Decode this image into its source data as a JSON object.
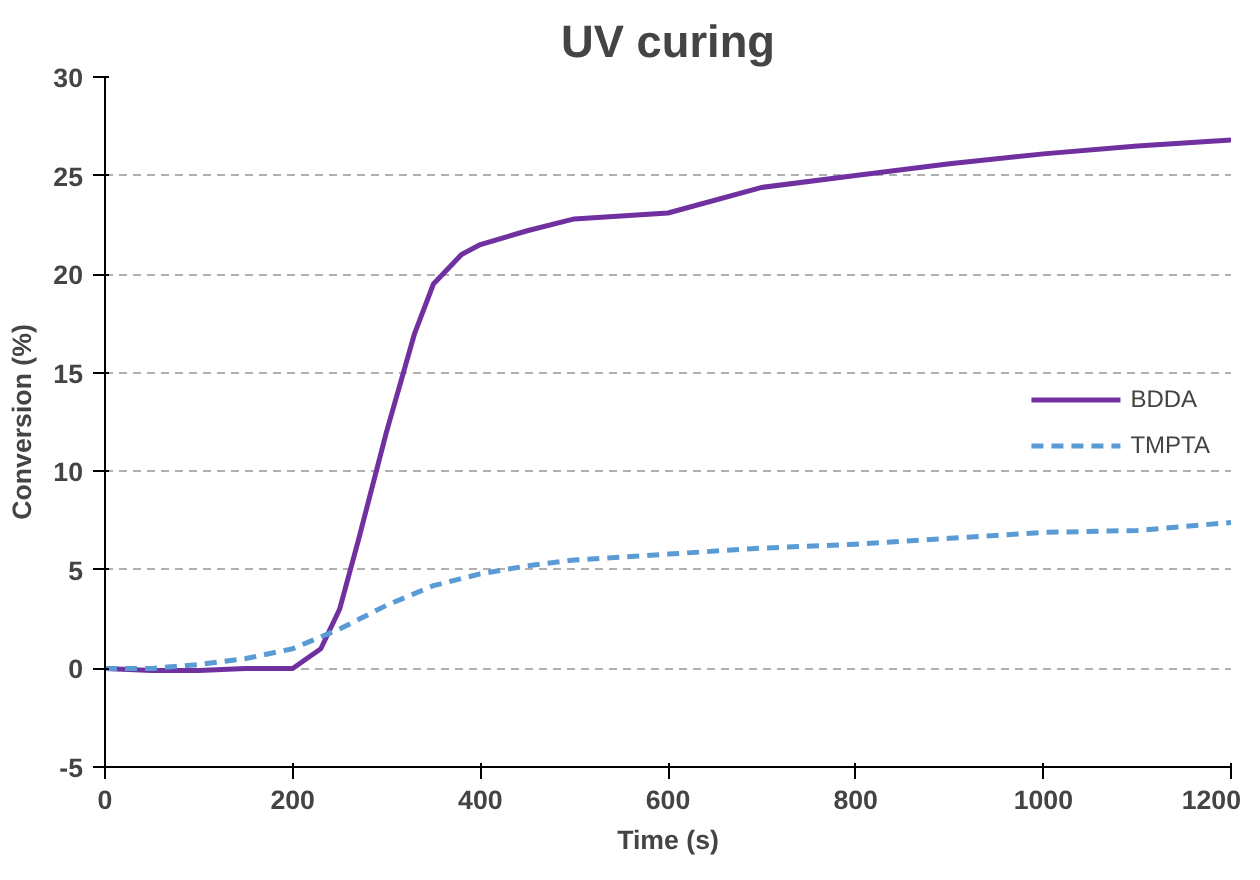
{
  "chart_data": {
    "type": "line",
    "title": "UV curing",
    "xlabel": "Time (s)",
    "ylabel": "Conversion (%)",
    "xlim": [
      0,
      1200
    ],
    "xticks": [
      0,
      200,
      400,
      600,
      800,
      1000,
      1200
    ],
    "ylim": [
      -5,
      30
    ],
    "yticks": [
      -5,
      0,
      5,
      10,
      15,
      20,
      25,
      30
    ],
    "grid": "y",
    "legend": "right",
    "series": [
      {
        "name": "BDDA",
        "color": "#7030a0",
        "line_style": "solid",
        "x": [
          0,
          50,
          100,
          150,
          200,
          230,
          250,
          270,
          300,
          330,
          350,
          380,
          400,
          450,
          500,
          600,
          700,
          800,
          900,
          1000,
          1100,
          1200
        ],
        "values": [
          0,
          -0.1,
          -0.1,
          0,
          0,
          1,
          3,
          6.5,
          12,
          17,
          19.5,
          21,
          21.5,
          22.2,
          22.8,
          23.1,
          24.4,
          25,
          25.6,
          26.1,
          26.5,
          26.8
        ]
      },
      {
        "name": "TMPTA",
        "color": "#5b9bd5",
        "line_style": "dashed",
        "x": [
          0,
          50,
          100,
          150,
          200,
          250,
          300,
          350,
          400,
          450,
          500,
          600,
          700,
          800,
          900,
          1000,
          1100,
          1200
        ],
        "values": [
          0,
          0,
          0.2,
          0.5,
          1,
          2,
          3.2,
          4.2,
          4.8,
          5.2,
          5.5,
          5.8,
          6.1,
          6.3,
          6.6,
          6.9,
          7,
          7.4
        ]
      }
    ]
  }
}
